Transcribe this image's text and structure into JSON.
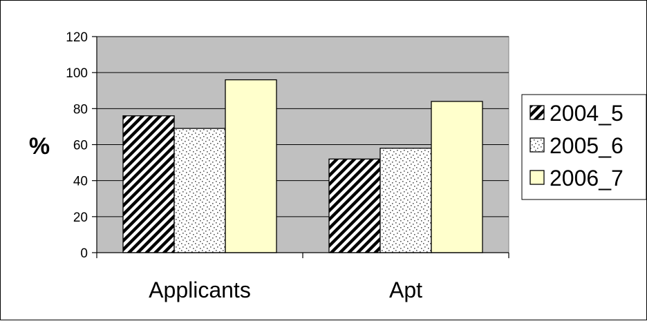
{
  "chart_data": {
    "type": "bar",
    "categories": [
      "Applicants",
      "Apt"
    ],
    "series": [
      {
        "name": "2004_5",
        "values": [
          76,
          52
        ],
        "pattern": "diagonal-hatch",
        "color": "#000000"
      },
      {
        "name": "2005_6",
        "values": [
          69,
          58
        ],
        "pattern": "dotted",
        "color": "#808080"
      },
      {
        "name": "2006_7",
        "values": [
          96,
          84
        ],
        "pattern": "solid",
        "color": "#FFFFCC"
      }
    ],
    "title": "",
    "xlabel": "",
    "ylabel": "%",
    "ylim": [
      0,
      120
    ],
    "yticks": [
      0,
      20,
      40,
      60,
      80,
      100,
      120
    ],
    "grid": true,
    "plot_background": "#C0C0C0",
    "legend_position": "right"
  }
}
